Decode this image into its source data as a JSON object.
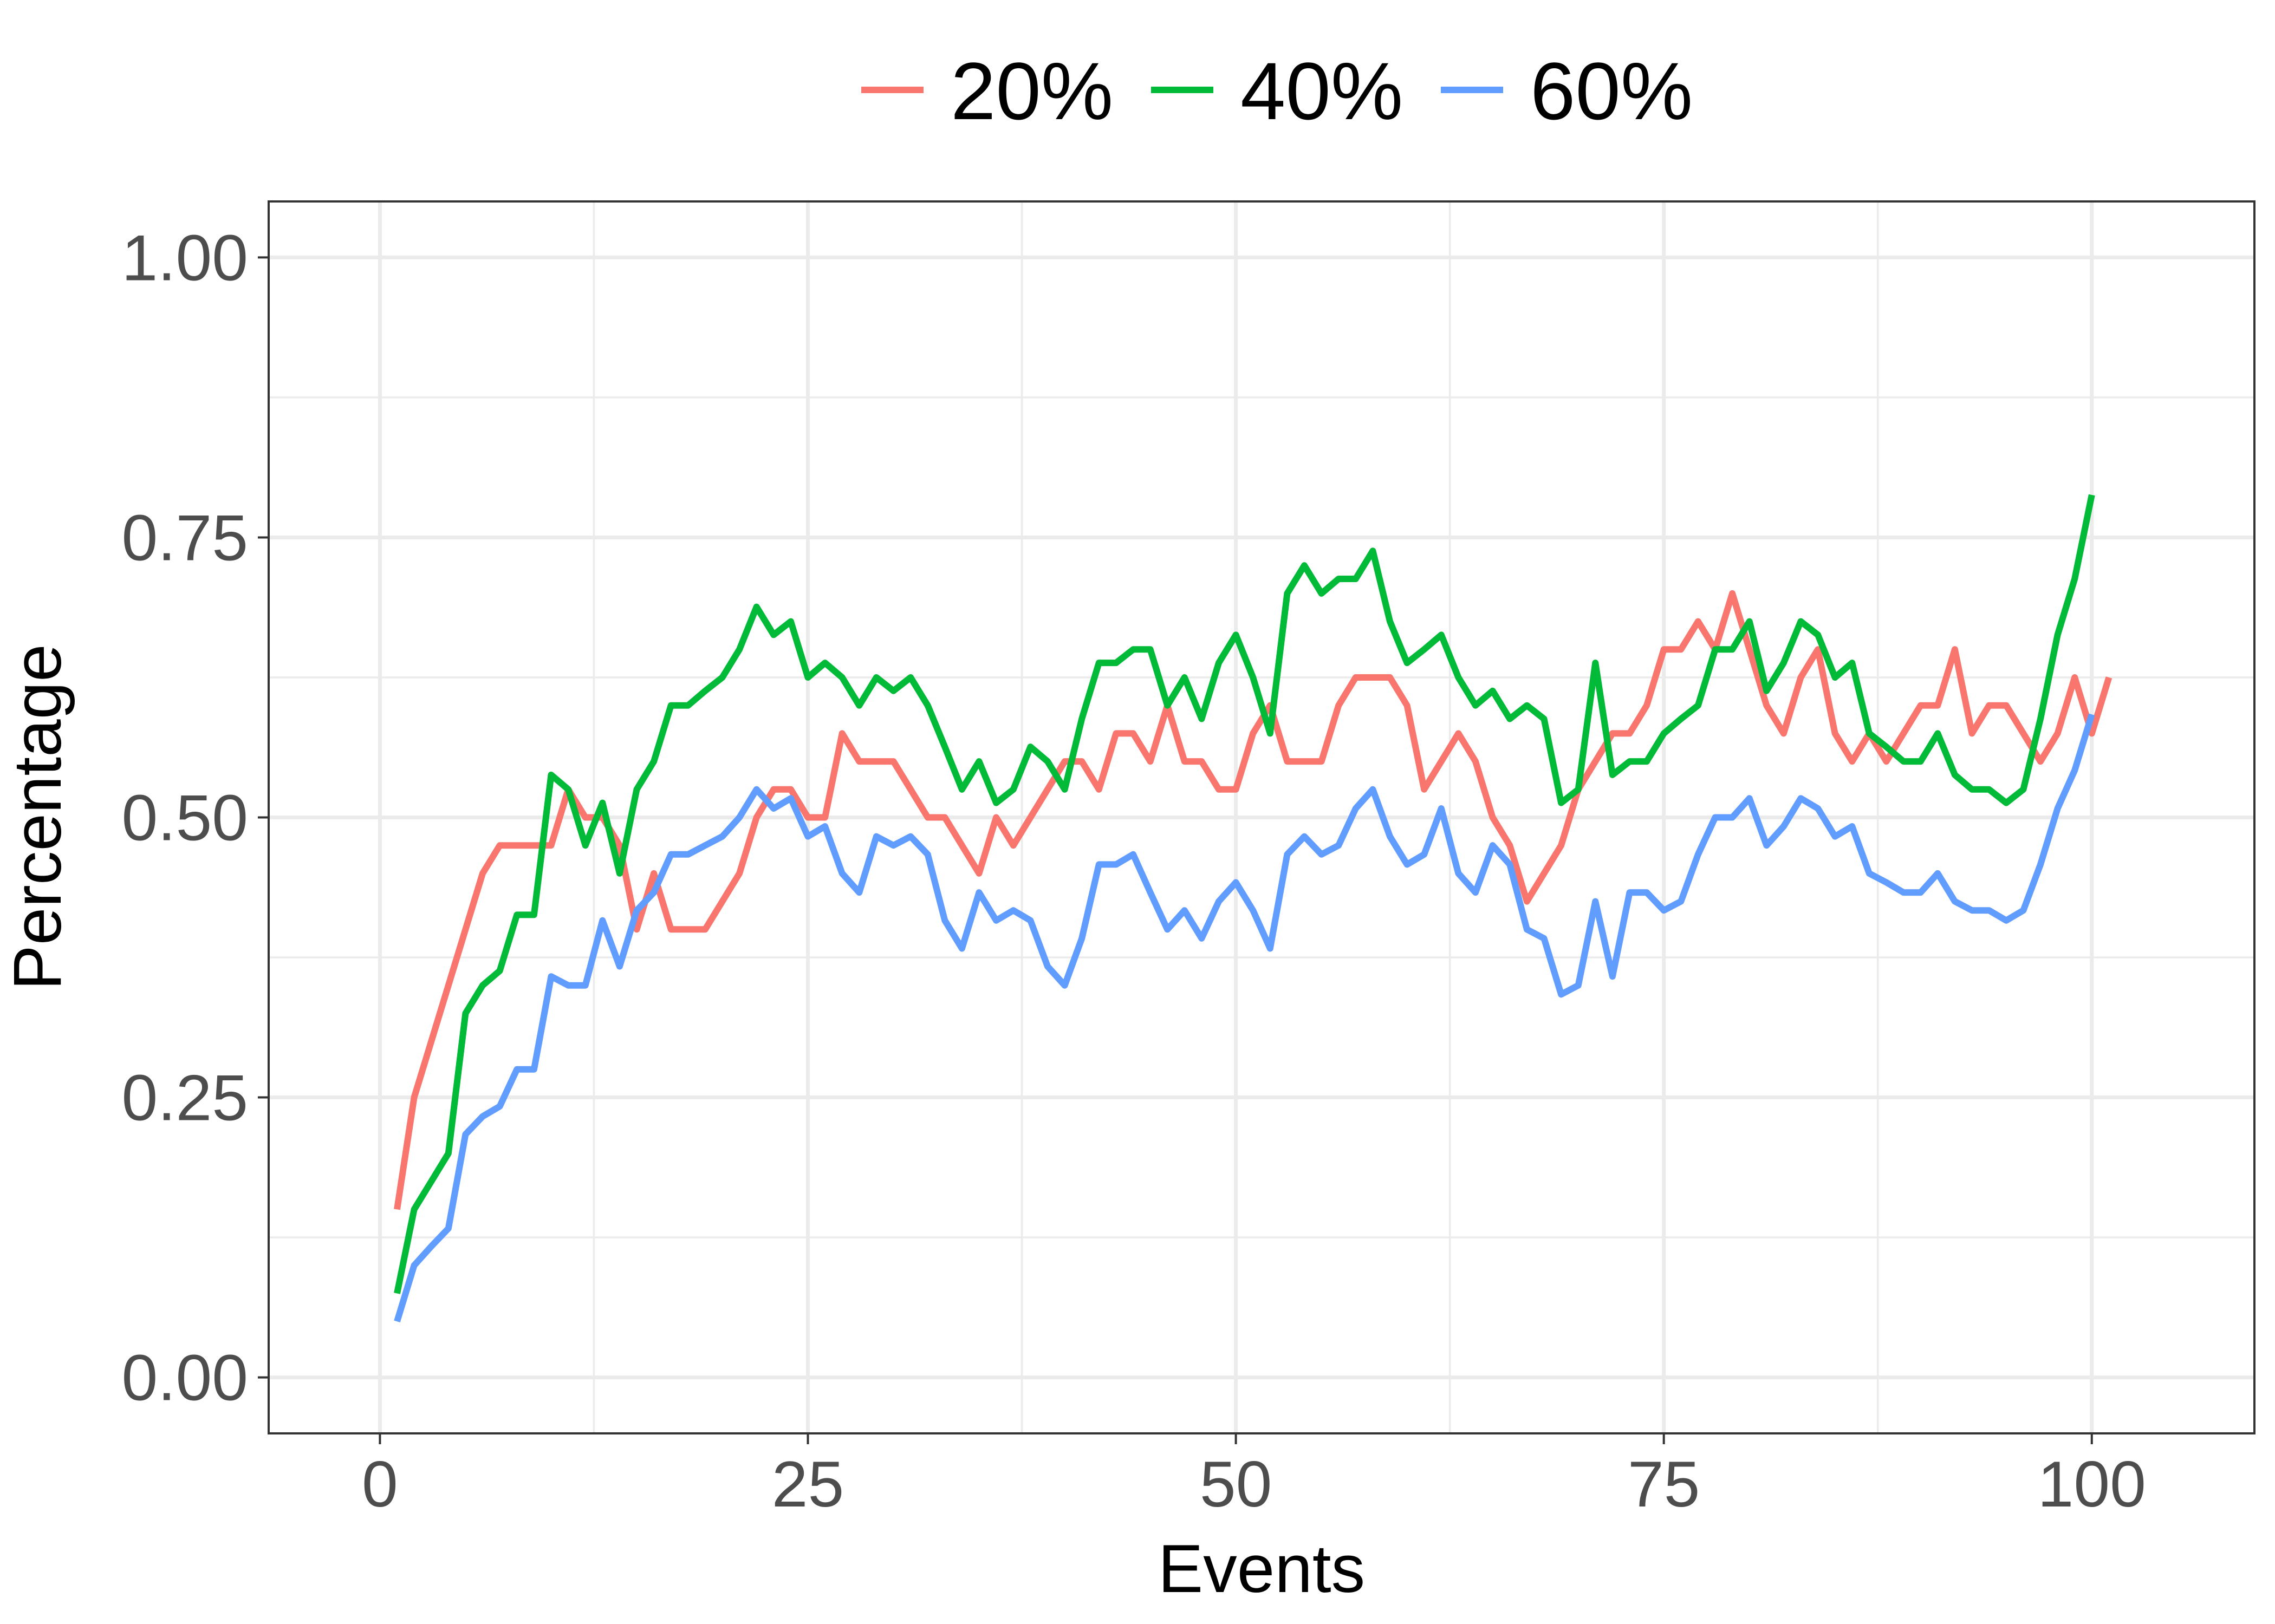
{
  "chart_data": {
    "type": "line",
    "xlabel": "Events",
    "ylabel": "Percentage",
    "xlim": [
      -6.5,
      109.5
    ],
    "ylim": [
      -0.05,
      1.05
    ],
    "x_ticks": [
      0,
      25,
      50,
      75,
      100
    ],
    "x_minor_ticks": [
      12.5,
      37.5,
      62.5,
      87.5
    ],
    "y_ticks": [
      0.0,
      0.25,
      0.5,
      0.75,
      1.0
    ],
    "y_tick_labels": [
      "0.00",
      "0.25",
      "0.50",
      "0.75",
      "1.00"
    ],
    "y_minor_ticks": [
      0.125,
      0.375,
      0.625,
      0.875
    ],
    "grid": true,
    "legend_position": "top",
    "series": [
      {
        "name": "20%",
        "color": "#F8766D",
        "values": [
          0.15,
          0.25,
          0.3,
          0.35,
          0.4,
          0.45,
          0.475,
          0.475,
          0.475,
          0.475,
          0.525,
          0.5,
          0.5,
          0.475,
          0.4,
          0.45,
          0.4,
          0.4,
          0.4,
          0.425,
          0.45,
          0.5,
          0.525,
          0.525,
          0.5,
          0.5,
          0.575,
          0.55,
          0.55,
          0.55,
          0.525,
          0.5,
          0.5,
          0.475,
          0.45,
          0.5,
          0.475,
          0.5,
          0.525,
          0.55,
          0.55,
          0.525,
          0.575,
          0.575,
          0.55,
          0.6,
          0.55,
          0.55,
          0.525,
          0.525,
          0.575,
          0.6,
          0.55,
          0.55,
          0.55,
          0.6,
          0.625,
          0.625,
          0.625,
          0.6,
          0.525,
          0.55,
          0.575,
          0.55,
          0.5,
          0.475,
          0.425,
          0.45,
          0.475,
          0.525,
          0.55,
          0.575,
          0.575,
          0.6,
          0.65,
          0.65,
          0.675,
          0.65,
          0.7,
          0.65,
          0.6,
          0.575,
          0.625,
          0.65,
          0.575,
          0.55,
          0.575,
          0.55,
          0.575,
          0.6,
          0.6,
          0.65,
          0.575,
          0.6,
          0.6,
          0.575,
          0.55,
          0.575,
          0.625,
          0.575,
          0.625
        ]
      },
      {
        "name": "40%",
        "color": "#00BA38",
        "values": [
          0.075,
          0.15,
          0.175,
          0.2,
          0.325,
          0.35,
          0.363,
          0.413,
          0.413,
          0.538,
          0.525,
          0.475,
          0.513,
          0.45,
          0.525,
          0.55,
          0.6,
          0.6,
          0.613,
          0.625,
          0.65,
          0.688,
          0.663,
          0.675,
          0.625,
          0.638,
          0.625,
          0.6,
          0.625,
          0.613,
          0.625,
          0.6,
          0.563,
          0.525,
          0.55,
          0.513,
          0.525,
          0.563,
          0.55,
          0.525,
          0.588,
          0.638,
          0.638,
          0.65,
          0.65,
          0.6,
          0.625,
          0.588,
          0.638,
          0.663,
          0.625,
          0.575,
          0.7,
          0.725,
          0.7,
          0.713,
          0.713,
          0.738,
          0.675,
          0.638,
          0.65,
          0.663,
          0.625,
          0.6,
          0.613,
          0.588,
          0.6,
          0.588,
          0.513,
          0.525,
          0.638,
          0.538,
          0.55,
          0.55,
          0.575,
          0.588,
          0.6,
          0.65,
          0.65,
          0.675,
          0.613,
          0.638,
          0.675,
          0.663,
          0.625,
          0.638,
          0.575,
          0.563,
          0.55,
          0.55,
          0.575,
          0.538,
          0.525,
          0.525,
          0.513,
          0.525,
          0.588,
          0.663,
          0.713,
          0.788
        ]
      },
      {
        "name": "60%",
        "color": "#619CFF",
        "values": [
          0.05,
          0.1,
          0.117,
          0.133,
          0.217,
          0.233,
          0.242,
          0.275,
          0.275,
          0.358,
          0.35,
          0.35,
          0.408,
          0.367,
          0.417,
          0.433,
          0.467,
          0.467,
          0.475,
          0.483,
          0.5,
          0.525,
          0.508,
          0.517,
          0.483,
          0.492,
          0.45,
          0.433,
          0.483,
          0.475,
          0.483,
          0.467,
          0.408,
          0.383,
          0.433,
          0.408,
          0.417,
          0.408,
          0.367,
          0.35,
          0.392,
          0.458,
          0.458,
          0.467,
          0.433,
          0.4,
          0.417,
          0.392,
          0.425,
          0.442,
          0.417,
          0.383,
          0.467,
          0.483,
          0.467,
          0.475,
          0.508,
          0.525,
          0.483,
          0.458,
          0.467,
          0.508,
          0.45,
          0.433,
          0.475,
          0.458,
          0.4,
          0.392,
          0.342,
          0.35,
          0.425,
          0.358,
          0.433,
          0.433,
          0.417,
          0.425,
          0.467,
          0.5,
          0.5,
          0.517,
          0.475,
          0.492,
          0.517,
          0.508,
          0.483,
          0.492,
          0.45,
          0.442,
          0.433,
          0.433,
          0.45,
          0.425,
          0.417,
          0.417,
          0.408,
          0.417,
          0.458,
          0.508,
          0.542,
          0.592
        ]
      }
    ]
  }
}
